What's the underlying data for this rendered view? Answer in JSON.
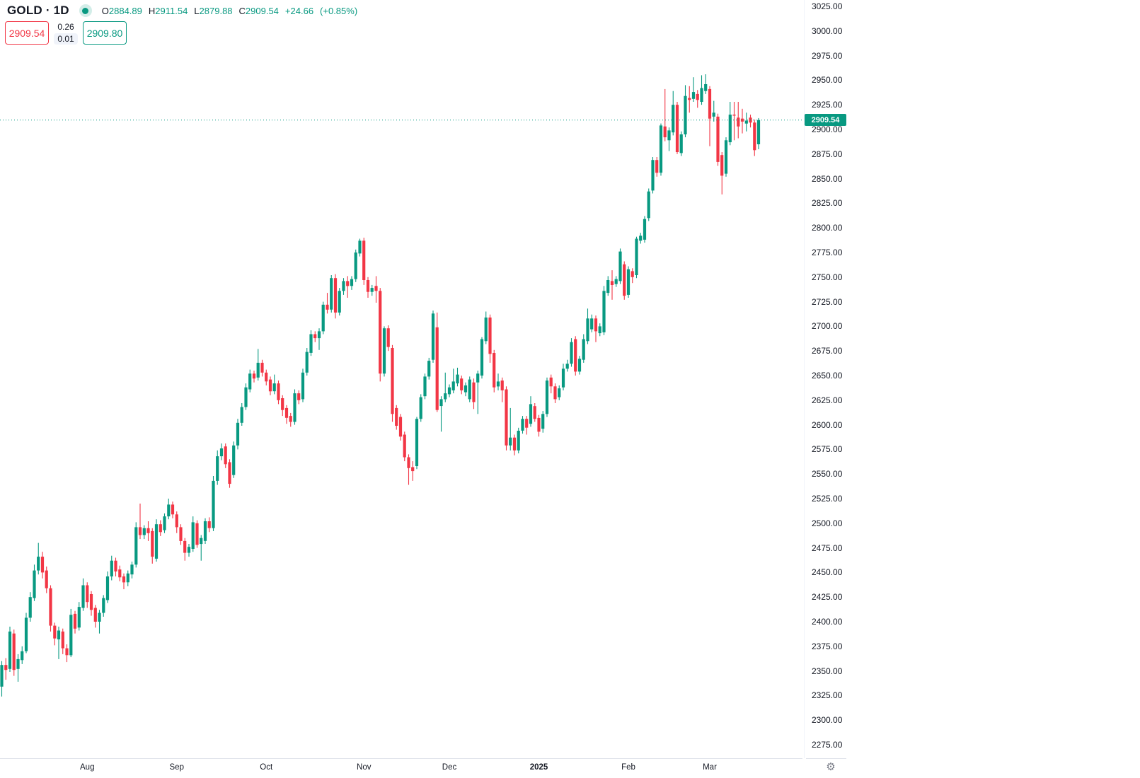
{
  "header": {
    "symbol_title": "GOLD · 1D",
    "ohlc": {
      "o_label": "O",
      "o_value": "2884.89",
      "h_label": "H",
      "h_value": "2911.54",
      "l_label": "L",
      "l_value": "2879.88",
      "c_label": "C",
      "c_value": "2909.54",
      "change": "+24.66",
      "change_pct": "(+0.85%)"
    },
    "bid": "2909.54",
    "spread_top": "0.26",
    "spread_bottom": "0.01",
    "ask": "2909.80"
  },
  "icons": {
    "settings_glyph": "⚙"
  },
  "colors": {
    "up": "#089981",
    "down": "#f23645",
    "last_price_line": "#089981",
    "axis_text": "#131722",
    "axis_border": "#e0e3eb"
  },
  "chart_data": {
    "type": "candlestick",
    "symbol": "GOLD",
    "timeframe": "1D",
    "last_price": 2909.54,
    "last_price_label": "2909.54",
    "y_axis": {
      "min": 2275,
      "max": 3025,
      "step": 25,
      "labels": [
        "3025.00",
        "3000.00",
        "2975.00",
        "2950.00",
        "2925.00",
        "2900.00",
        "2875.00",
        "2850.00",
        "2825.00",
        "2800.00",
        "2775.00",
        "2750.00",
        "2725.00",
        "2700.00",
        "2675.00",
        "2650.00",
        "2625.00",
        "2600.00",
        "2575.00",
        "2550.00",
        "2525.00",
        "2500.00",
        "2475.00",
        "2450.00",
        "2425.00",
        "2400.00",
        "2375.00",
        "2350.00",
        "2325.00",
        "2300.00",
        "2275.00"
      ]
    },
    "x_axis": {
      "ticks": [
        {
          "label": "Aug",
          "index": 21,
          "year": false
        },
        {
          "label": "Sep",
          "index": 43,
          "year": false
        },
        {
          "label": "Oct",
          "index": 65,
          "year": false
        },
        {
          "label": "Nov",
          "index": 89,
          "year": false
        },
        {
          "label": "Dec",
          "index": 110,
          "year": false
        },
        {
          "label": "2025",
          "index": 132,
          "year": true
        },
        {
          "label": "Feb",
          "index": 154,
          "year": false
        },
        {
          "label": "Mar",
          "index": 174,
          "year": false
        }
      ]
    },
    "candles": [
      [
        2334,
        2360,
        2324,
        2356
      ],
      [
        2356,
        2363,
        2341,
        2351
      ],
      [
        2352,
        2395,
        2349,
        2390
      ],
      [
        2388,
        2392,
        2345,
        2351
      ],
      [
        2352,
        2367,
        2339,
        2362
      ],
      [
        2361,
        2375,
        2357,
        2370
      ],
      [
        2370,
        2409,
        2368,
        2404
      ],
      [
        2404,
        2430,
        2400,
        2425
      ],
      [
        2424,
        2458,
        2421,
        2452
      ],
      [
        2452,
        2480,
        2448,
        2466
      ],
      [
        2466,
        2471,
        2444,
        2450
      ],
      [
        2452,
        2456,
        2429,
        2434
      ],
      [
        2434,
        2437,
        2390,
        2396
      ],
      [
        2396,
        2399,
        2376,
        2383
      ],
      [
        2382,
        2395,
        2362,
        2391
      ],
      [
        2390,
        2393,
        2367,
        2373
      ],
      [
        2373,
        2377,
        2359,
        2366
      ],
      [
        2366,
        2413,
        2364,
        2407
      ],
      [
        2408,
        2411,
        2388,
        2393
      ],
      [
        2394,
        2420,
        2391,
        2415
      ],
      [
        2414,
        2444,
        2411,
        2437
      ],
      [
        2437,
        2440,
        2414,
        2420
      ],
      [
        2428,
        2431,
        2406,
        2412
      ],
      [
        2414,
        2417,
        2394,
        2400
      ],
      [
        2400,
        2412,
        2388,
        2409
      ],
      [
        2409,
        2427,
        2405,
        2424
      ],
      [
        2422,
        2451,
        2419,
        2446
      ],
      [
        2446,
        2467,
        2442,
        2462
      ],
      [
        2462,
        2465,
        2446,
        2451
      ],
      [
        2453,
        2457,
        2441,
        2445
      ],
      [
        2446,
        2449,
        2433,
        2440
      ],
      [
        2440,
        2452,
        2436,
        2449
      ],
      [
        2448,
        2461,
        2444,
        2458
      ],
      [
        2458,
        2501,
        2455,
        2496
      ],
      [
        2496,
        2520,
        2484,
        2488
      ],
      [
        2488,
        2498,
        2484,
        2495
      ],
      [
        2495,
        2502,
        2482,
        2490
      ],
      [
        2492,
        2495,
        2459,
        2466
      ],
      [
        2464,
        2504,
        2461,
        2499
      ],
      [
        2499,
        2503,
        2487,
        2491
      ],
      [
        2493,
        2510,
        2490,
        2507
      ],
      [
        2507,
        2525,
        2504,
        2519
      ],
      [
        2519,
        2522,
        2505,
        2509
      ],
      [
        2509,
        2512,
        2490,
        2496
      ],
      [
        2496,
        2499,
        2478,
        2482
      ],
      [
        2482,
        2485,
        2462,
        2470
      ],
      [
        2470,
        2479,
        2466,
        2476
      ],
      [
        2474,
        2507,
        2471,
        2501
      ],
      [
        2500,
        2503,
        2475,
        2478
      ],
      [
        2479,
        2488,
        2462,
        2485
      ],
      [
        2482,
        2505,
        2479,
        2502
      ],
      [
        2502,
        2506,
        2491,
        2495
      ],
      [
        2495,
        2548,
        2492,
        2543
      ],
      [
        2543,
        2574,
        2539,
        2568
      ],
      [
        2568,
        2581,
        2564,
        2576
      ],
      [
        2578,
        2581,
        2556,
        2560
      ],
      [
        2562,
        2565,
        2536,
        2540
      ],
      [
        2549,
        2583,
        2546,
        2579
      ],
      [
        2579,
        2606,
        2575,
        2602
      ],
      [
        2602,
        2622,
        2599,
        2618
      ],
      [
        2618,
        2642,
        2615,
        2638
      ],
      [
        2636,
        2656,
        2633,
        2652
      ],
      [
        2652,
        2655,
        2643,
        2647
      ],
      [
        2648,
        2677,
        2645,
        2663
      ],
      [
        2663,
        2666,
        2649,
        2653
      ],
      [
        2653,
        2656,
        2640,
        2644
      ],
      [
        2646,
        2649,
        2630,
        2634
      ],
      [
        2634,
        2651,
        2631,
        2642
      ],
      [
        2642,
        2645,
        2621,
        2625
      ],
      [
        2627,
        2630,
        2609,
        2615
      ],
      [
        2617,
        2620,
        2601,
        2607
      ],
      [
        2609,
        2612,
        2598,
        2603
      ],
      [
        2603,
        2636,
        2600,
        2632
      ],
      [
        2632,
        2635,
        2621,
        2625
      ],
      [
        2626,
        2657,
        2623,
        2653
      ],
      [
        2653,
        2678,
        2650,
        2674
      ],
      [
        2673,
        2696,
        2670,
        2692
      ],
      [
        2692,
        2695,
        2684,
        2688
      ],
      [
        2688,
        2698,
        2676,
        2695
      ],
      [
        2695,
        2725,
        2692,
        2722
      ],
      [
        2722,
        2734,
        2713,
        2717
      ],
      [
        2717,
        2752,
        2714,
        2749
      ],
      [
        2749,
        2753,
        2708,
        2714
      ],
      [
        2714,
        2739,
        2711,
        2736
      ],
      [
        2736,
        2749,
        2732,
        2746
      ],
      [
        2746,
        2751,
        2729,
        2741
      ],
      [
        2741,
        2751,
        2737,
        2748
      ],
      [
        2748,
        2778,
        2745,
        2775
      ],
      [
        2774,
        2789,
        2771,
        2787
      ],
      [
        2787,
        2790,
        2742,
        2747
      ],
      [
        2747,
        2750,
        2729,
        2735
      ],
      [
        2735,
        2742,
        2731,
        2739
      ],
      [
        2741,
        2751,
        2724,
        2736
      ],
      [
        2736,
        2739,
        2644,
        2652
      ],
      [
        2652,
        2700,
        2649,
        2698
      ],
      [
        2698,
        2701,
        2675,
        2679
      ],
      [
        2678,
        2681,
        2603,
        2611
      ],
      [
        2617,
        2620,
        2595,
        2599
      ],
      [
        2608,
        2611,
        2584,
        2588
      ],
      [
        2590,
        2593,
        2563,
        2567
      ],
      [
        2567,
        2570,
        2539,
        2556
      ],
      [
        2557,
        2563,
        2543,
        2553
      ],
      [
        2558,
        2608,
        2555,
        2606
      ],
      [
        2606,
        2631,
        2603,
        2628
      ],
      [
        2629,
        2652,
        2626,
        2649
      ],
      [
        2649,
        2668,
        2646,
        2665
      ],
      [
        2666,
        2716,
        2663,
        2713
      ],
      [
        2699,
        2714,
        2613,
        2615
      ],
      [
        2619,
        2629,
        2593,
        2626
      ],
      [
        2626,
        2653,
        2623,
        2632
      ],
      [
        2631,
        2641,
        2628,
        2638
      ],
      [
        2635,
        2657,
        2632,
        2644
      ],
      [
        2642,
        2658,
        2639,
        2651
      ],
      [
        2647,
        2650,
        2631,
        2635
      ],
      [
        2633,
        2643,
        2629,
        2640
      ],
      [
        2626,
        2649,
        2623,
        2646
      ],
      [
        2643,
        2647,
        2616,
        2623
      ],
      [
        2643,
        2655,
        2611,
        2652
      ],
      [
        2650,
        2689,
        2647,
        2687
      ],
      [
        2685,
        2715,
        2682,
        2709
      ],
      [
        2709,
        2712,
        2663,
        2672
      ],
      [
        2673,
        2676,
        2633,
        2638
      ],
      [
        2639,
        2652,
        2635,
        2644
      ],
      [
        2645,
        2648,
        2623,
        2635
      ],
      [
        2636,
        2639,
        2574,
        2579
      ],
      [
        2579,
        2617,
        2574,
        2587
      ],
      [
        2587,
        2590,
        2569,
        2574
      ],
      [
        2574,
        2597,
        2571,
        2594
      ],
      [
        2594,
        2609,
        2591,
        2606
      ],
      [
        2606,
        2609,
        2590,
        2597
      ],
      [
        2601,
        2629,
        2598,
        2621
      ],
      [
        2619,
        2622,
        2603,
        2606
      ],
      [
        2607,
        2610,
        2588,
        2593
      ],
      [
        2596,
        2614,
        2592,
        2611
      ],
      [
        2611,
        2648,
        2608,
        2645
      ],
      [
        2648,
        2651,
        2632,
        2639
      ],
      [
        2639,
        2642,
        2622,
        2626
      ],
      [
        2628,
        2640,
        2625,
        2637
      ],
      [
        2638,
        2662,
        2635,
        2657
      ],
      [
        2657,
        2666,
        2654,
        2662
      ],
      [
        2662,
        2688,
        2659,
        2684
      ],
      [
        2687,
        2690,
        2650,
        2654
      ],
      [
        2654,
        2670,
        2651,
        2667
      ],
      [
        2666,
        2692,
        2663,
        2687
      ],
      [
        2685,
        2718,
        2682,
        2708
      ],
      [
        2697,
        2712,
        2694,
        2708
      ],
      [
        2708,
        2711,
        2684,
        2695
      ],
      [
        2693,
        2703,
        2690,
        2700
      ],
      [
        2694,
        2741,
        2691,
        2736
      ],
      [
        2734,
        2751,
        2731,
        2747
      ],
      [
        2746,
        2757,
        2727,
        2742
      ],
      [
        2743,
        2751,
        2740,
        2748
      ],
      [
        2746,
        2779,
        2743,
        2776
      ],
      [
        2763,
        2766,
        2727,
        2731
      ],
      [
        2732,
        2761,
        2729,
        2758
      ],
      [
        2756,
        2759,
        2744,
        2750
      ],
      [
        2752,
        2791,
        2749,
        2789
      ],
      [
        2787,
        2795,
        2784,
        2792
      ],
      [
        2788,
        2812,
        2785,
        2809
      ],
      [
        2810,
        2840,
        2807,
        2837
      ],
      [
        2838,
        2872,
        2835,
        2869
      ],
      [
        2869,
        2872,
        2852,
        2856
      ],
      [
        2856,
        2906,
        2853,
        2904
      ],
      [
        2903,
        2941,
        2888,
        2892
      ],
      [
        2889,
        2902,
        2878,
        2899
      ],
      [
        2897,
        2939,
        2894,
        2925
      ],
      [
        2925,
        2928,
        2875,
        2877
      ],
      [
        2876,
        2898,
        2873,
        2895
      ],
      [
        2895,
        2945,
        2892,
        2934
      ],
      [
        2932,
        2944,
        2917,
        2930
      ],
      [
        2931,
        2953,
        2928,
        2938
      ],
      [
        2936,
        2940,
        2922,
        2930
      ],
      [
        2928,
        2955,
        2925,
        2942
      ],
      [
        2939,
        2956,
        2936,
        2946
      ],
      [
        2941,
        2944,
        2883,
        2911
      ],
      [
        2913,
        2929,
        2908,
        2917
      ],
      [
        2913,
        2916,
        2863,
        2867
      ],
      [
        2874,
        2877,
        2834,
        2853
      ],
      [
        2855,
        2892,
        2852,
        2889
      ],
      [
        2887,
        2928,
        2884,
        2915
      ],
      [
        2915,
        2928,
        2889,
        2914
      ],
      [
        2912,
        2928,
        2891,
        2903
      ],
      [
        2911,
        2921,
        2896,
        2908
      ],
      [
        2906,
        2917,
        2898,
        2909
      ],
      [
        2912,
        2915,
        2902,
        2907
      ],
      [
        2907,
        2910,
        2873,
        2879
      ],
      [
        2884.89,
        2911.54,
        2879.88,
        2909.54
      ]
    ]
  }
}
